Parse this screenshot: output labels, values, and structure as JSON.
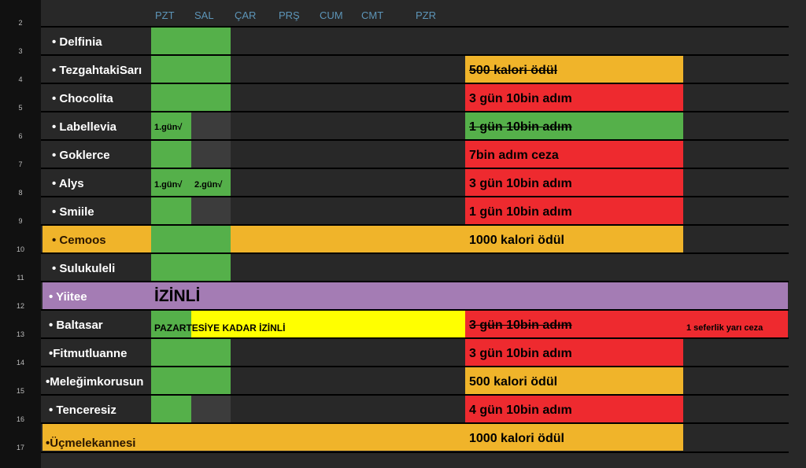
{
  "days": [
    "PZT",
    "SAL",
    "ÇAR",
    "PRŞ",
    "CUM",
    "CMT",
    "PZR"
  ],
  "row_numbers": [
    "2",
    "3",
    "4",
    "5",
    "6",
    "7",
    "8",
    "9",
    "10",
    "11",
    "12",
    "13",
    "14",
    "15",
    "16",
    "17"
  ],
  "names": [
    "• Delfinia",
    "• TezgahtakiSarı",
    "• Chocolita",
    "• Labellevia",
    "• Goklerce",
    "• Alys",
    "• Smiile",
    "• Cemoos",
    "• Sulukuleli",
    "• Yiitee",
    "• Baltasar",
    "•Fitmutluanne",
    "•Meleğimkorusun",
    "• Tenceresiz",
    "•Üçmelekannesi"
  ],
  "notes": {
    "tezgah": "500 kalori ödül",
    "chocolita": "3 gün 10bin adım",
    "labellevia": "1 gün 10bin adım",
    "goklerce": "7bin adım ceza",
    "alys": "3 gün 10bin adım",
    "smiile": "1 gün 10bin adım",
    "cemoos": "1000 kalori ödül",
    "baltasar": "3 gün 10bin adım",
    "fitmutlu": "3 gün 10bin adım",
    "melegim": "500 kalori ödül",
    "tenceresiz": "4 gün 10bin adım",
    "ucmelek": "1000 kalori ödül"
  },
  "labellevia_day1": "1.gün√",
  "alys_day1": "1.gün√",
  "alys_day2": "2.gün√",
  "yiitee_status": "İZİNLİ",
  "baltasar_status": "PAZARTESİYE KADAR İZİNLİ",
  "baltasar_extra": "1 seferlik yarı ceza",
  "colors": {
    "green": "#55b04a",
    "gray": "#3c3c3c",
    "orange": "#f0b42a",
    "red": "#ee2a2f",
    "purple": "#a47cb4",
    "yellow": "#ffff00"
  }
}
